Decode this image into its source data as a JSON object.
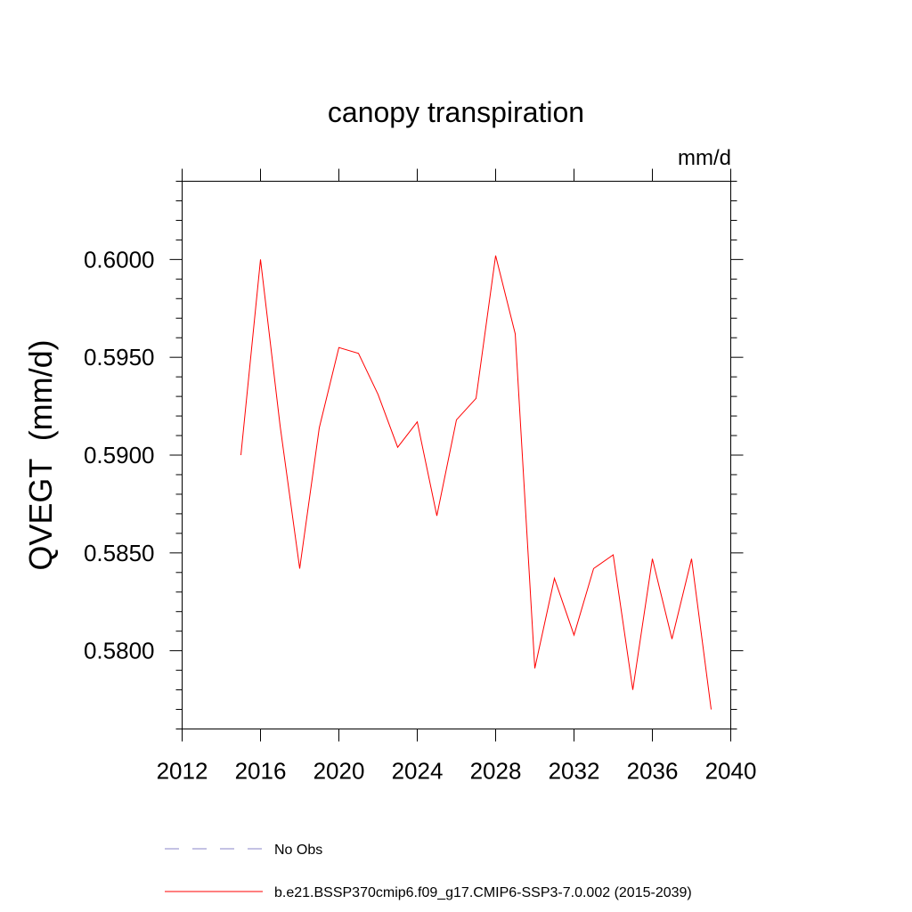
{
  "chart_data": {
    "type": "line",
    "title": "canopy transpiration",
    "units": "mm/d",
    "ylabel": "QVEGT  (mm/d)",
    "xlabel": "",
    "xlim": [
      2012,
      2040
    ],
    "ylim": [
      0.576,
      0.604
    ],
    "x_ticks": [
      2012,
      2016,
      2020,
      2024,
      2028,
      2032,
      2036,
      2040
    ],
    "x_tick_labels": [
      "2012",
      "2016",
      "2020",
      "2024",
      "2028",
      "2032",
      "2036",
      "2040"
    ],
    "y_ticks": [
      0.58,
      0.585,
      0.59,
      0.595,
      0.6
    ],
    "y_tick_labels": [
      "0.5800",
      "0.5850",
      "0.5900",
      "0.5950",
      "0.6000"
    ],
    "grid": false,
    "legend_position": "bottom",
    "series": [
      {
        "name": "b.e21.BSSP370cmip6.f09_g17.CMIP6-SSP3-7.0.002 (2015-2039)",
        "color": "#ff0000",
        "line_style": "solid",
        "x": [
          2015,
          2016,
          2017,
          2018,
          2019,
          2020,
          2021,
          2022,
          2023,
          2024,
          2025,
          2026,
          2027,
          2028,
          2029,
          2030,
          2031,
          2032,
          2033,
          2034,
          2035,
          2036,
          2037,
          2038,
          2039
        ],
        "y": [
          0.59,
          0.6,
          0.5915,
          0.5842,
          0.5914,
          0.5955,
          0.5952,
          0.5931,
          0.5904,
          0.5917,
          0.5869,
          0.5918,
          0.5929,
          0.6002,
          0.5962,
          0.5791,
          0.5837,
          0.5808,
          0.5842,
          0.5849,
          0.578,
          0.5847,
          0.5806,
          0.5847,
          0.577
        ]
      }
    ],
    "legend": [
      {
        "label": "No Obs",
        "color": "#8a86c9",
        "line_style": "dashed"
      },
      {
        "label": "b.e21.BSSP370cmip6.f09_g17.CMIP6-SSP3-7.0.002 (2015-2039)",
        "color": "#ff0000",
        "line_style": "solid"
      }
    ]
  }
}
